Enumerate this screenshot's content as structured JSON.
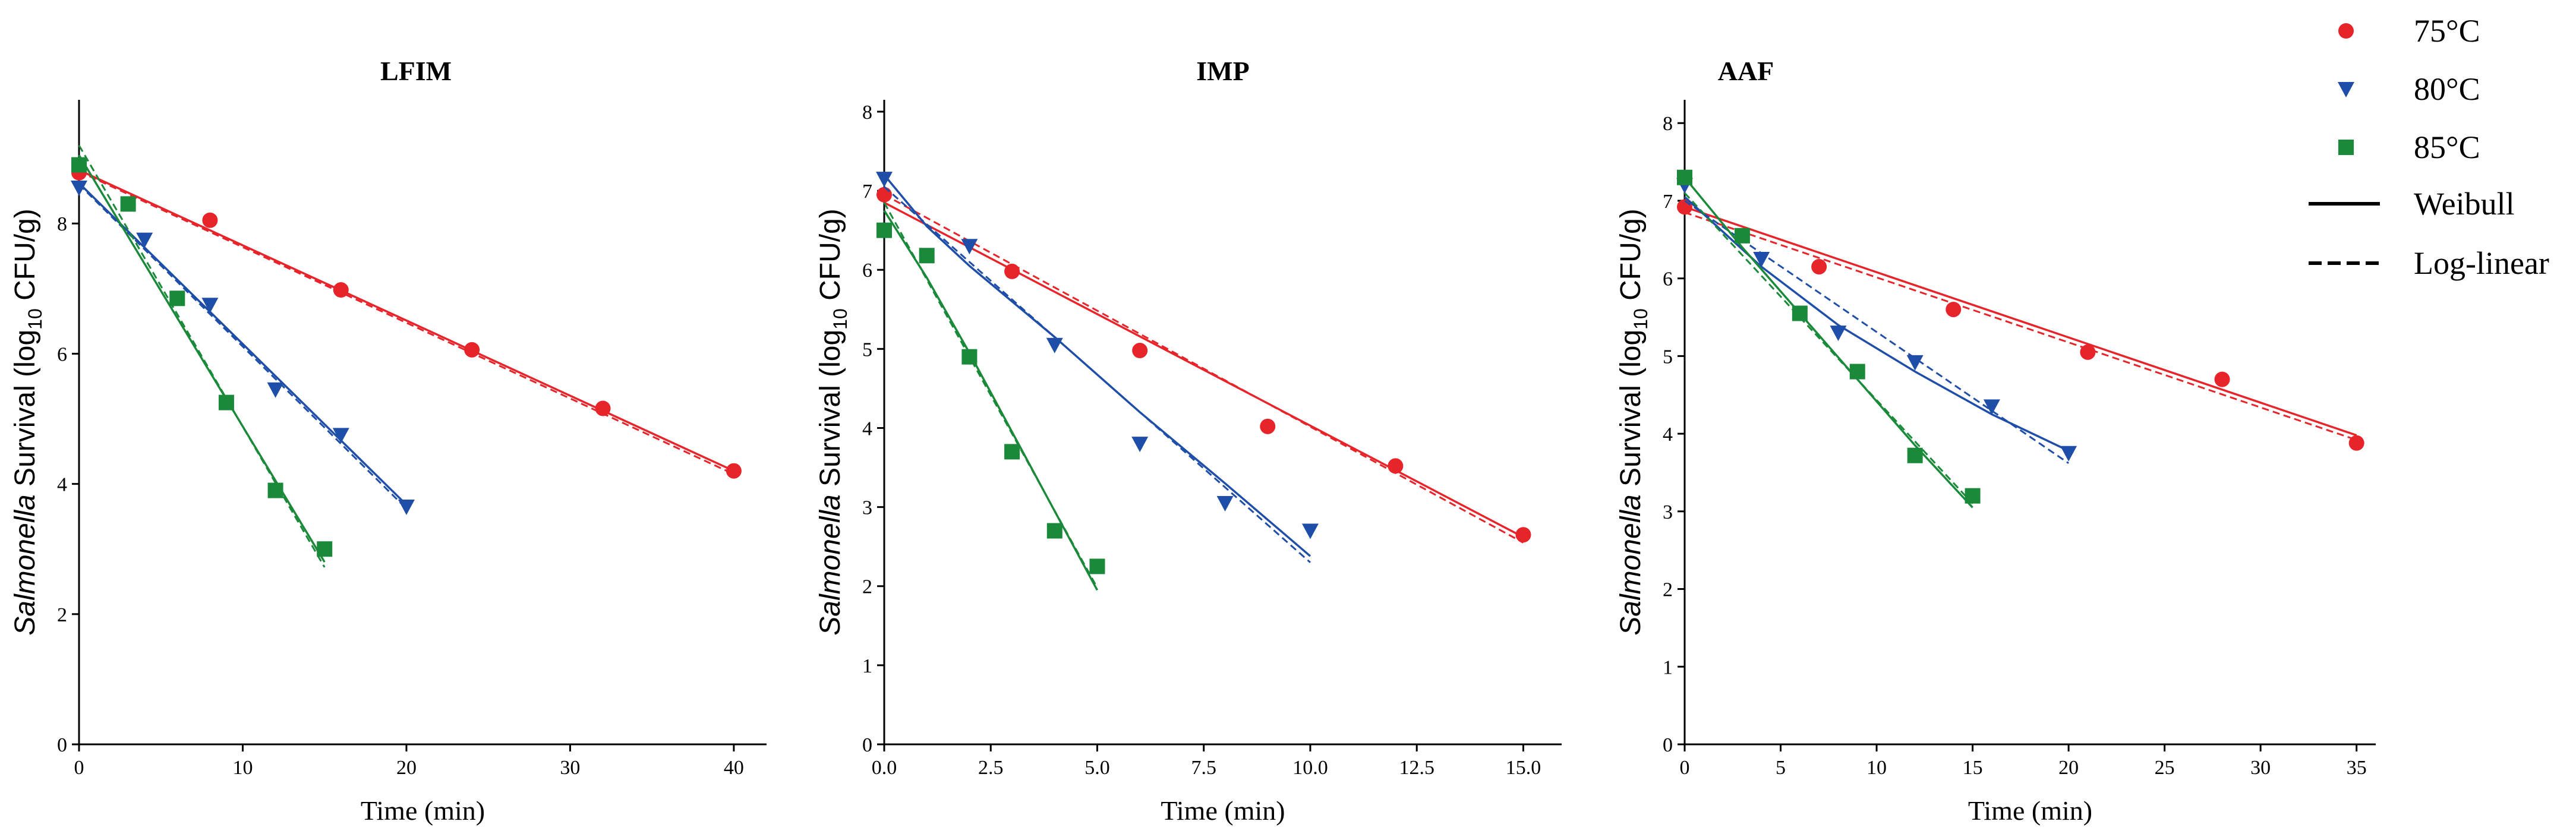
{
  "chart_data": {
    "type": "scatter",
    "legend": {
      "position": "top-right",
      "entries": [
        {
          "label": "75°C",
          "kind": "circle",
          "color": "#e8242b"
        },
        {
          "label": "80°C",
          "kind": "triangle",
          "color": "#1f4ea8"
        },
        {
          "label": "85°C",
          "kind": "square",
          "color": "#1a8a3a"
        },
        {
          "label": "Weibull",
          "kind": "solid-line",
          "color": "#000000"
        },
        {
          "label": "Log-linear",
          "kind": "dashed-line",
          "color": "#000000"
        }
      ]
    },
    "panels": [
      {
        "title": "LFIM",
        "xlabel": "Time (min)",
        "ylabel_italic": "Salmonella",
        "ylabel_rest": "Survival (log",
        "ylabel_sub": "10",
        "ylabel_end": "CFU/g)",
        "xlim": [
          0,
          42
        ],
        "ylim": [
          0,
          9.9
        ],
        "xticks": [
          0,
          10,
          20,
          30,
          40
        ],
        "xtick_labels": [
          "0",
          "10",
          "20",
          "30",
          "40"
        ],
        "yticks": [
          0,
          2,
          4,
          6,
          8
        ],
        "ytick_labels": [
          "0",
          "2",
          "4",
          "6",
          "8"
        ],
        "series": [
          {
            "name": "75°C",
            "marker": "circle",
            "color": "#e8242b",
            "x": [
              0,
              8,
              16,
              24,
              32,
              40
            ],
            "y": [
              8.78,
              8.05,
              6.98,
              6.06,
              5.16,
              4.2
            ],
            "weibull": [
              [
                0,
                8.82
              ],
              [
                40,
                4.2
              ]
            ],
            "loglinear": [
              [
                0,
                8.8
              ],
              [
                40,
                4.15
              ]
            ]
          },
          {
            "name": "80°C",
            "marker": "triangle",
            "color": "#1f4ea8",
            "x": [
              0,
              4,
              8,
              12,
              16,
              20
            ],
            "y": [
              8.55,
              7.75,
              6.75,
              5.45,
              4.75,
              3.65
            ],
            "weibull": [
              [
                0,
                8.62
              ],
              [
                20,
                3.68
              ]
            ],
            "loglinear": [
              [
                0,
                8.6
              ],
              [
                20,
                3.62
              ]
            ]
          },
          {
            "name": "85°C",
            "marker": "square",
            "color": "#1a8a3a",
            "x": [
              0,
              3,
              6,
              9,
              12,
              15
            ],
            "y": [
              8.9,
              8.3,
              6.85,
              5.25,
              3.9,
              3.0
            ],
            "weibull": [
              [
                0,
                9.05
              ],
              [
                15,
                2.8
              ]
            ],
            "loglinear": [
              [
                0,
                9.2
              ],
              [
                15,
                2.72
              ]
            ]
          }
        ]
      },
      {
        "title": "IMP",
        "xlabel": "Time (min)",
        "ylabel_italic": "Salmonella",
        "ylabel_rest": "Survival (log",
        "ylabel_sub": "10",
        "ylabel_end": "CFU/g)",
        "xlim": [
          0,
          15.9
        ],
        "ylim": [
          0,
          8.15
        ],
        "xticks": [
          0,
          2.5,
          5,
          7.5,
          10,
          12.5,
          15
        ],
        "xtick_labels": [
          "0.0",
          "2.5",
          "5.0",
          "7.5",
          "10.0",
          "12.5",
          "15.0"
        ],
        "yticks": [
          0,
          1,
          2,
          3,
          4,
          5,
          6,
          7,
          8
        ],
        "ytick_labels": [
          "0",
          "1",
          "2",
          "3",
          "4",
          "5",
          "6",
          "7",
          "8"
        ],
        "series": [
          {
            "name": "75°C",
            "marker": "circle",
            "color": "#e8242b",
            "x": [
              0,
              3,
              6,
              9,
              12,
              15
            ],
            "y": [
              6.95,
              5.98,
              4.98,
              4.02,
              3.52,
              2.65
            ],
            "weibull": [
              [
                0,
                6.85
              ],
              [
                15,
                2.62
              ]
            ],
            "loglinear": [
              [
                0,
                6.95
              ],
              [
                15,
                2.55
              ]
            ]
          },
          {
            "name": "80°C",
            "marker": "triangle",
            "color": "#1f4ea8",
            "x": [
              0,
              2,
              4,
              6,
              8,
              10
            ],
            "y": [
              7.15,
              6.3,
              5.05,
              3.8,
              3.05,
              2.7
            ],
            "weibull": [
              [
                0,
                7.2
              ],
              [
                1,
                6.55
              ],
              [
                2,
                6.05
              ],
              [
                4,
                5.15
              ],
              [
                6,
                4.2
              ],
              [
                8,
                3.3
              ],
              [
                10,
                2.38
              ]
            ],
            "loglinear": [
              [
                0,
                7.05
              ],
              [
                10,
                2.3
              ]
            ]
          },
          {
            "name": "85°C",
            "marker": "square",
            "color": "#1a8a3a",
            "x": [
              0,
              1,
              2,
              3,
              4,
              5
            ],
            "y": [
              6.5,
              6.18,
              4.9,
              3.7,
              2.7,
              2.25
            ],
            "weibull": [
              [
                0,
                6.75
              ],
              [
                1,
                5.9
              ],
              [
                2,
                4.95
              ],
              [
                3,
                3.95
              ],
              [
                4,
                2.95
              ],
              [
                5,
                1.95
              ]
            ],
            "loglinear": [
              [
                0,
                6.85
              ],
              [
                5,
                1.98
              ]
            ]
          }
        ]
      },
      {
        "title": "AAF",
        "xlabel": "Time (min)",
        "ylabel_italic": "Salmonella",
        "ylabel_rest": "Survival (log",
        "ylabel_sub": "10",
        "ylabel_end": "CFU/g)",
        "xlim": [
          0,
          36
        ],
        "ylim": [
          0,
          8.3
        ],
        "xticks": [
          0,
          5,
          10,
          15,
          20,
          25,
          30,
          35
        ],
        "xtick_labels": [
          "0",
          "5",
          "10",
          "15",
          "20",
          "25",
          "30",
          "35"
        ],
        "yticks": [
          0,
          1,
          2,
          3,
          4,
          5,
          6,
          7,
          8
        ],
        "ytick_labels": [
          "0",
          "1",
          "2",
          "3",
          "4",
          "5",
          "6",
          "7",
          "8"
        ],
        "series": [
          {
            "name": "75°C",
            "marker": "circle",
            "color": "#e8242b",
            "x": [
              0,
              7,
              14,
              21,
              28,
              35
            ],
            "y": [
              6.92,
              6.15,
              5.6,
              5.05,
              4.7,
              3.88
            ],
            "weibull": [
              [
                0,
                6.92
              ],
              [
                35,
                3.98
              ]
            ],
            "loglinear": [
              [
                0,
                6.85
              ],
              [
                35,
                3.92
              ]
            ]
          },
          {
            "name": "80°C",
            "marker": "triangle",
            "color": "#1f4ea8",
            "x": [
              0,
              4,
              8,
              12,
              16,
              20
            ],
            "y": [
              7.2,
              6.25,
              5.3,
              4.92,
              4.35,
              3.75
            ],
            "weibull": [
              [
                0,
                7.05
              ],
              [
                4,
                6.15
              ],
              [
                8,
                5.4
              ],
              [
                12,
                4.8
              ],
              [
                16,
                4.25
              ],
              [
                20,
                3.78
              ]
            ],
            "loglinear": [
              [
                0,
                7.0
              ],
              [
                20,
                3.62
              ]
            ]
          },
          {
            "name": "85°C",
            "marker": "square",
            "color": "#1a8a3a",
            "x": [
              0,
              3,
              6,
              9,
              12,
              15
            ],
            "y": [
              7.3,
              6.55,
              5.55,
              4.8,
              3.72,
              3.2
            ],
            "weibull": [
              [
                0,
                7.3
              ],
              [
                3,
                6.4
              ],
              [
                6,
                5.55
              ],
              [
                9,
                4.7
              ],
              [
                12,
                3.85
              ],
              [
                15,
                3.05
              ]
            ],
            "loglinear": [
              [
                0,
                7.1
              ],
              [
                15,
                3.1
              ]
            ]
          }
        ]
      }
    ]
  }
}
